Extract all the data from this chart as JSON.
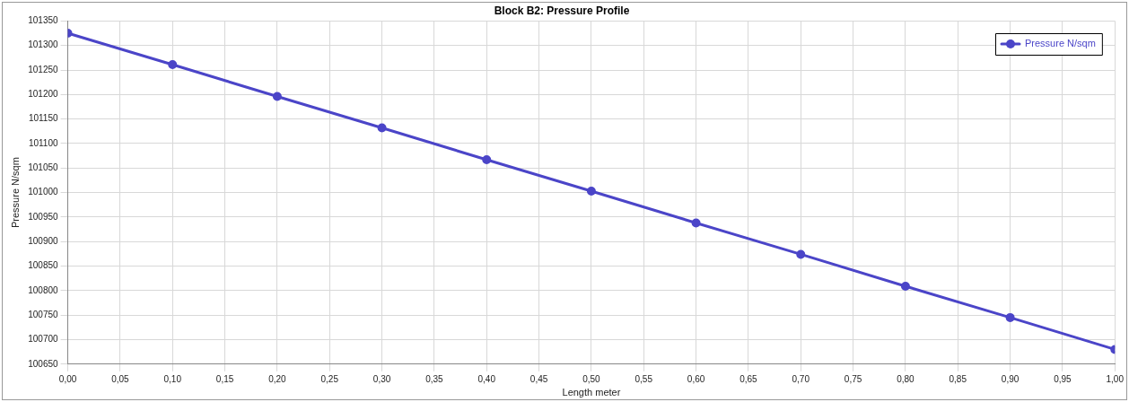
{
  "chart_data": {
    "type": "line",
    "title": "Block B2: Pressure Profile",
    "xlabel": "Length meter",
    "ylabel": "Pressure N/sqm",
    "x": [
      0,
      0.1,
      0.2,
      0.3,
      0.4,
      0.5,
      0.6,
      0.7,
      0.8,
      0.9,
      1.0
    ],
    "series": [
      {
        "name": "Pressure N/sqm",
        "color": "#4b45c8",
        "values": [
          101325,
          101261,
          101196,
          101132,
          101067,
          101003,
          100938,
          100874,
          100809,
          100745,
          100680
        ]
      }
    ],
    "xlim": [
      0,
      1
    ],
    "xticks": [
      {
        "value": 0,
        "label": "0,00"
      },
      {
        "value": 0.05,
        "label": "0,05"
      },
      {
        "value": 0.1,
        "label": "0,10"
      },
      {
        "value": 0.15,
        "label": "0,15"
      },
      {
        "value": 0.2,
        "label": "0,20"
      },
      {
        "value": 0.25,
        "label": "0,25"
      },
      {
        "value": 0.3,
        "label": "0,30"
      },
      {
        "value": 0.35,
        "label": "0,35"
      },
      {
        "value": 0.4,
        "label": "0,40"
      },
      {
        "value": 0.45,
        "label": "0,45"
      },
      {
        "value": 0.5,
        "label": "0,50"
      },
      {
        "value": 0.55,
        "label": "0,55"
      },
      {
        "value": 0.6,
        "label": "0,60"
      },
      {
        "value": 0.65,
        "label": "0,65"
      },
      {
        "value": 0.7,
        "label": "0,70"
      },
      {
        "value": 0.75,
        "label": "0,75"
      },
      {
        "value": 0.8,
        "label": "0,80"
      },
      {
        "value": 0.85,
        "label": "0,85"
      },
      {
        "value": 0.9,
        "label": "0,90"
      },
      {
        "value": 0.95,
        "label": "0,95"
      },
      {
        "value": 1.0,
        "label": "1,00"
      }
    ],
    "ylim": [
      100650,
      101350
    ],
    "yticks": [
      100650,
      100700,
      100750,
      100800,
      100850,
      100900,
      100950,
      101000,
      101050,
      101100,
      101150,
      101200,
      101250,
      101300,
      101350
    ],
    "grid": true,
    "legend": "top right",
    "marker": "circle",
    "line_style": "solid"
  }
}
